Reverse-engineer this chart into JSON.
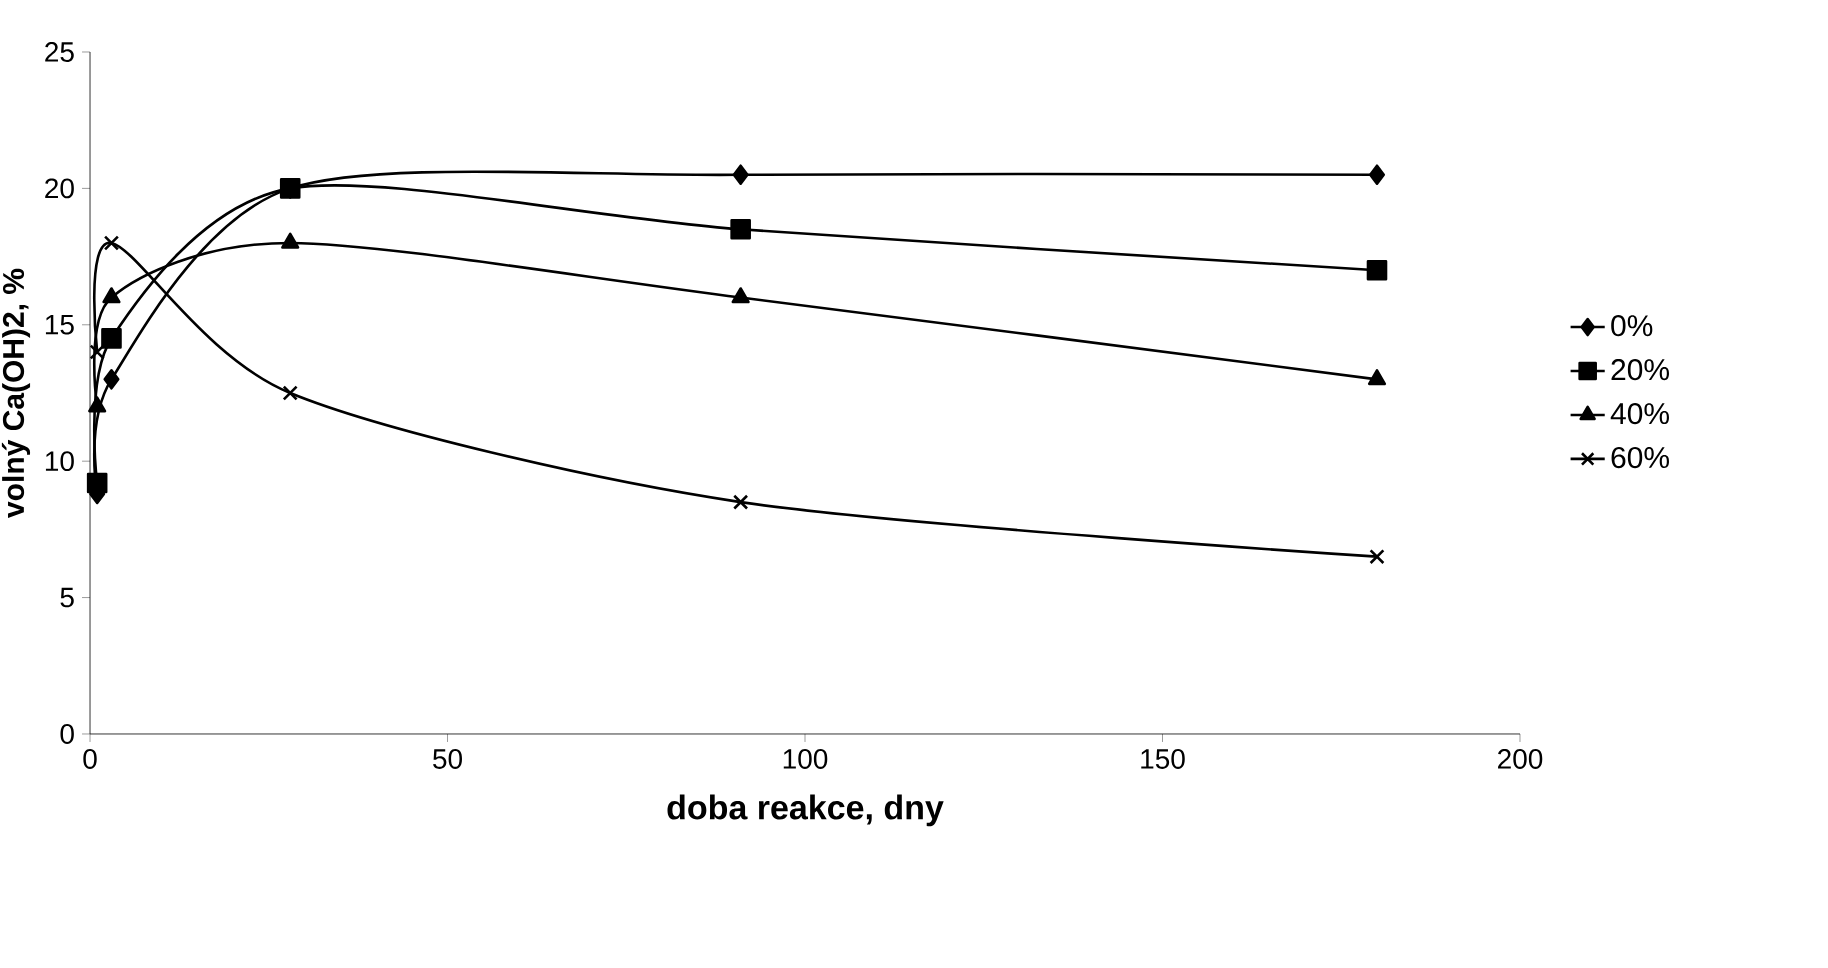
{
  "chart_data": {
    "type": "line",
    "xlabel": "doba reakce, dny",
    "ylabel": "volný Ca(OH)2, %",
    "xlim": [
      0,
      200
    ],
    "xticks": [
      0,
      50,
      100,
      150,
      200
    ],
    "ylim": [
      0,
      25
    ],
    "yticks": [
      0,
      5,
      10,
      15,
      20,
      25
    ],
    "grid": false,
    "legend": "right",
    "line_style": "solid",
    "series": [
      {
        "name": "0%",
        "color": "#000000",
        "marker": "diamond",
        "x": [
          1,
          3,
          28,
          91,
          180
        ],
        "values": [
          8.8,
          13,
          20,
          20.5,
          20.5
        ]
      },
      {
        "name": "20%",
        "color": "#000000",
        "marker": "square",
        "x": [
          1,
          3,
          28,
          91,
          180
        ],
        "values": [
          9.2,
          14.5,
          20,
          18.5,
          17
        ]
      },
      {
        "name": "40%",
        "color": "#000000",
        "marker": "triangle",
        "x": [
          1,
          3,
          28,
          91,
          180
        ],
        "values": [
          12,
          16,
          18,
          16,
          13
        ]
      },
      {
        "name": "60%",
        "color": "#000000",
        "marker": "cross",
        "x": [
          1,
          3,
          28,
          91,
          180
        ],
        "values": [
          14,
          18,
          12.5,
          8.5,
          6.5
        ]
      }
    ]
  }
}
